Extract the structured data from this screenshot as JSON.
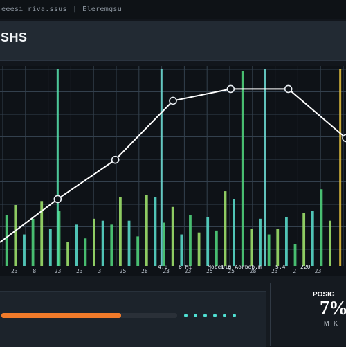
{
  "tabbar": {
    "tab_1": "eeesi riva.ssus",
    "separator": "|",
    "tab_2": "Eleremgsu"
  },
  "header": {
    "title": "SHS"
  },
  "chart_data": {
    "type": "line",
    "line": {
      "x": [
        0,
        1,
        2,
        3,
        4,
        5,
        6
      ],
      "y": [
        1.2,
        3.4,
        5.4,
        8.4,
        9.0,
        9.0,
        6.5
      ],
      "color": "#ffffff"
    },
    "bars": {
      "values": [
        2.6,
        3.1,
        1.6,
        2.4,
        3.3,
        1.9,
        2.8,
        1.2,
        2.1,
        1.4,
        2.4,
        2.3,
        2.1,
        3.5,
        2.3,
        1.5,
        3.6,
        3.5,
        2.2,
        3.0,
        1.6,
        2.6,
        1.7,
        2.5,
        1.8,
        3.8,
        3.4,
        9.9,
        1.9,
        2.4,
        1.6,
        1.9,
        2.5,
        1.1,
        2.7,
        2.8,
        3.9,
        2.3
      ],
      "colors": [
        "#4fd07a",
        "#9ce06a",
        "#58d8c8"
      ]
    },
    "markers": [
      {
        "x": 1.0,
        "color": "#57e6b0"
      },
      {
        "x": 2.8,
        "color": "#6fe0d8"
      },
      {
        "x": 4.6,
        "color": "#6fe0d8"
      },
      {
        "x": 5.9,
        "color": "#e8c440"
      }
    ],
    "x_tick_labels": [
      "23",
      "8",
      "23",
      "23",
      "3",
      "25",
      "28",
      "23",
      "23",
      "25",
      "25",
      "28",
      "23",
      "2",
      "23"
    ],
    "annotations": [
      "4.0",
      "6 Mi",
      "Mocei.5",
      "Olg Aorbob.m",
      "5.4",
      "220"
    ],
    "grid": true
  },
  "bottom": {
    "progress": 0.68,
    "progress_color": "#f07a2a",
    "stat_label": "POSIG",
    "stat_value": "7%",
    "stat_sub": "M K"
  }
}
